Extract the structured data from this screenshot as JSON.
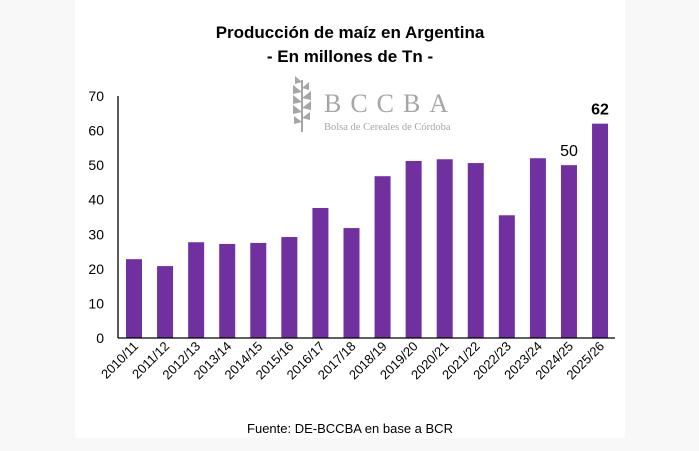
{
  "chart_data": {
    "type": "bar",
    "title": "Producción de maíz en Argentina",
    "subtitle": "- En millones de Tn -",
    "xlabel": "",
    "ylabel": "",
    "ylim": [
      0,
      70
    ],
    "yticks": [
      0,
      10,
      20,
      30,
      40,
      50,
      60,
      70
    ],
    "grid": false,
    "categories": [
      "2010/11",
      "2011/12",
      "2012/13",
      "2013/14",
      "2014/15",
      "2015/16",
      "2016/17",
      "2017/18",
      "2018/19",
      "2019/20",
      "2020/21",
      "2021/22",
      "2022/23",
      "2023/24",
      "2024/25",
      "2025/26"
    ],
    "values": [
      22.8,
      20.8,
      27.7,
      27.2,
      27.5,
      29.2,
      37.6,
      31.8,
      46.8,
      51.2,
      51.7,
      50.6,
      35.5,
      52.0,
      50,
      62
    ],
    "data_labels": [
      {
        "category": "2024/25",
        "text": "50",
        "bold": false
      },
      {
        "category": "2025/26",
        "text": "62",
        "bold": true
      }
    ],
    "bar_color": "#7030a0",
    "source": "Fuente: DE-BCCBA en base a BCR"
  },
  "logo": {
    "name": "BCCBA",
    "subtitle": "Bolsa de Cereales de Córdoba"
  }
}
